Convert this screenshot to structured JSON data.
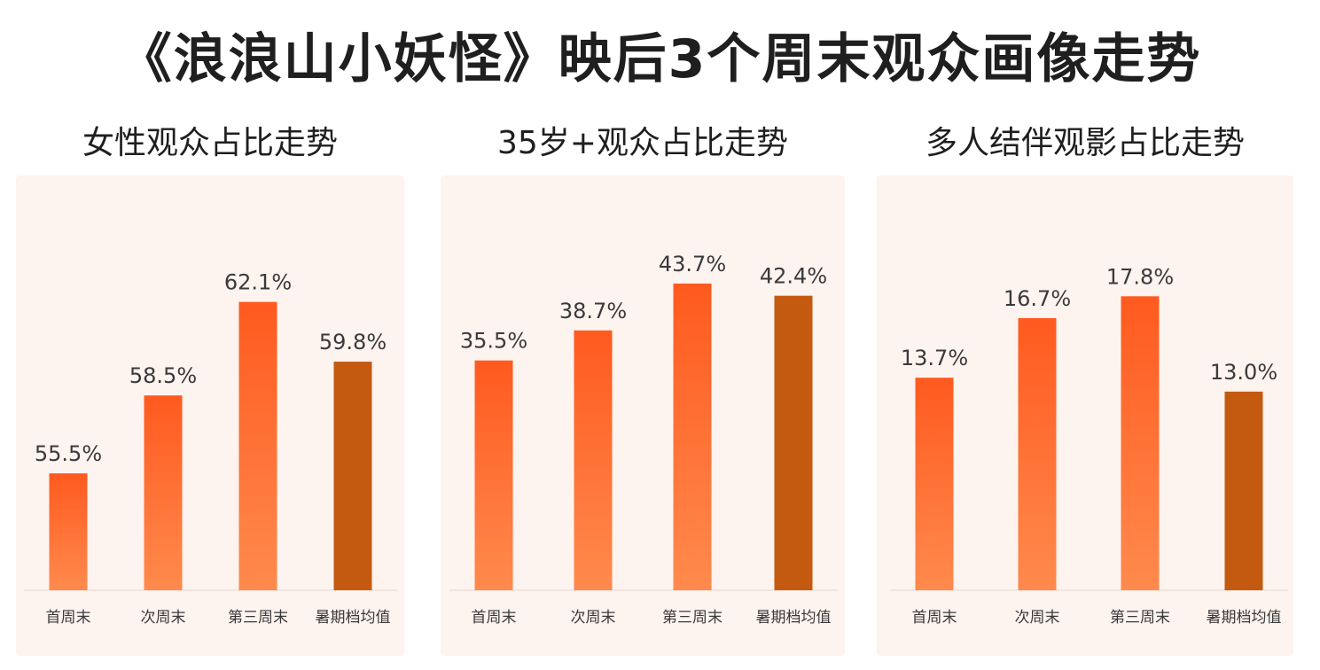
{
  "title": "《浪浪山小妖怪》映后3个周末观众画像走势",
  "colors": {
    "bar_top": "#ff5a1f",
    "bar_bottom": "#ff8a4d",
    "avg_bar": "#c45a0f",
    "panel_bg": "#fdf3ef",
    "axis": "#e6d5cd"
  },
  "chart_data": [
    {
      "type": "bar",
      "title": "女性观众占比走势",
      "categories": [
        "首周末",
        "次周末",
        "第三周末",
        "暑期档均值"
      ],
      "values": [
        55.5,
        58.5,
        62.1,
        59.8
      ],
      "labels": [
        "55.5%",
        "58.5%",
        "62.1%",
        "59.8%"
      ],
      "ylim": [
        51,
        64
      ]
    },
    {
      "type": "bar",
      "title": "35岁+观众占比走势",
      "categories": [
        "首周末",
        "次周末",
        "第三周末",
        "暑期档均值"
      ],
      "values": [
        35.5,
        38.7,
        43.7,
        42.4
      ],
      "labels": [
        "35.5%",
        "38.7%",
        "43.7%",
        "42.4%"
      ],
      "ylim": [
        11,
        47
      ]
    },
    {
      "type": "bar",
      "title": "多人结伴观影占比走势",
      "categories": [
        "首周末",
        "次周末",
        "第三周末",
        "暑期档均值"
      ],
      "values": [
        13.7,
        16.7,
        17.8,
        13.0
      ],
      "labels": [
        "13.7%",
        "16.7%",
        "17.8%",
        "13.0%"
      ],
      "ylim": [
        3,
        20
      ]
    }
  ]
}
